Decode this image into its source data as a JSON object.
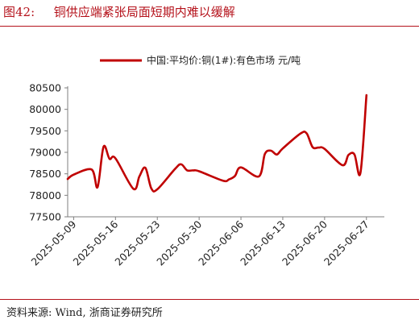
{
  "figure": {
    "label": "图42:",
    "title": "铜供应端紧张局面短期内难以缓解",
    "source": "资料来源: Wind, 浙商证券研究所"
  },
  "colors": {
    "accent": "#b5121b",
    "series": "#c00000",
    "axis": "#7f7f7f"
  },
  "chart_data": {
    "type": "line",
    "grid": false,
    "legend_position": "top-center",
    "x_range": [
      "2025-05-08",
      "2025-06-30"
    ],
    "x_ticks": [
      "2025-05-09",
      "2025-05-16",
      "2025-05-23",
      "2025-05-30",
      "2025-06-06",
      "2025-06-13",
      "2025-06-20",
      "2025-06-27"
    ],
    "ylim": [
      77500,
      80500
    ],
    "y_ticks": [
      77500,
      78000,
      78500,
      79000,
      79500,
      80000,
      80500
    ],
    "series": [
      {
        "name": "中国:平均价:铜(1#):有色市场 元/吨",
        "x": [
          "2025-05-08",
          "2025-05-09",
          "2025-05-12",
          "2025-05-13",
          "2025-05-14",
          "2025-05-15",
          "2025-05-16",
          "2025-05-19",
          "2025-05-20",
          "2025-05-21",
          "2025-05-22",
          "2025-05-23",
          "2025-05-26",
          "2025-05-27",
          "2025-05-28",
          "2025-05-29",
          "2025-05-30",
          "2025-06-03",
          "2025-06-04",
          "2025-06-05",
          "2025-06-06",
          "2025-06-09",
          "2025-06-10",
          "2025-06-11",
          "2025-06-12",
          "2025-06-13",
          "2025-06-16",
          "2025-06-17",
          "2025-06-18",
          "2025-06-19",
          "2025-06-20",
          "2025-06-23",
          "2025-06-24",
          "2025-06-25",
          "2025-06-26",
          "2025-06-27"
        ],
        "y": [
          78380,
          78480,
          78600,
          78190,
          79130,
          78850,
          78860,
          78150,
          78440,
          78640,
          78160,
          78140,
          78620,
          78720,
          78580,
          78580,
          78560,
          78340,
          78370,
          78450,
          78650,
          78440,
          78960,
          79040,
          78950,
          79090,
          79440,
          79440,
          79120,
          79110,
          79080,
          78700,
          78940,
          78950,
          78520,
          80330
        ]
      }
    ]
  }
}
